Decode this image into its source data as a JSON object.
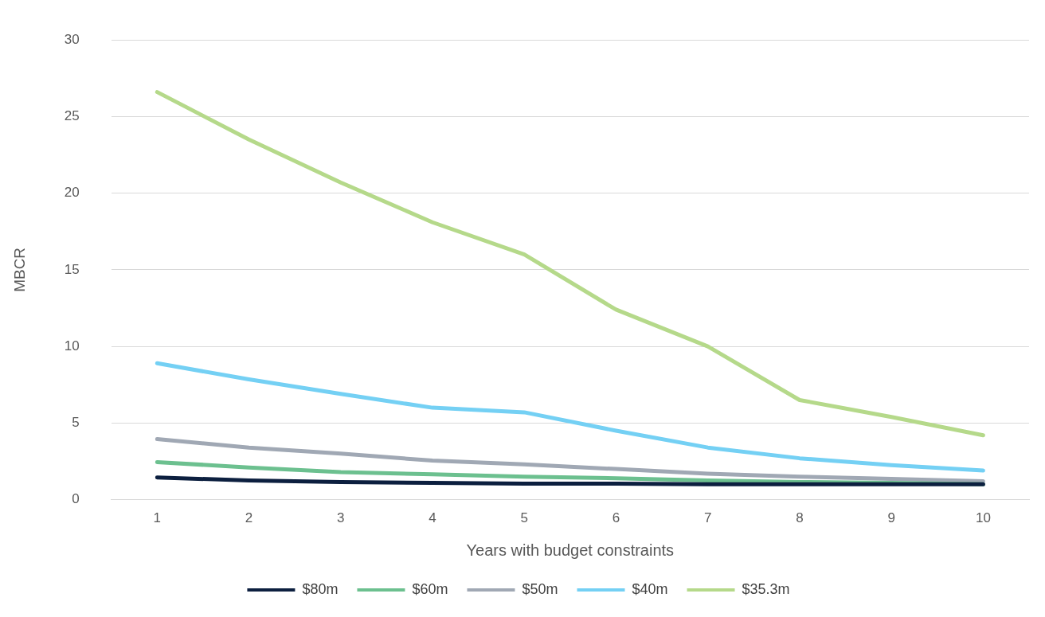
{
  "chart_data": {
    "type": "line",
    "xlabel": "Years with budget constraints",
    "ylabel": "MBCR",
    "categories": [
      "1",
      "2",
      "3",
      "4",
      "5",
      "6",
      "7",
      "8",
      "9",
      "10"
    ],
    "series": [
      {
        "name": "$80m",
        "color": "#0c1f3f",
        "values": [
          1.45,
          1.25,
          1.15,
          1.1,
          1.05,
          1.05,
          1.0,
          1.0,
          1.0,
          1.0
        ]
      },
      {
        "name": "$60m",
        "color": "#6cc08f",
        "values": [
          2.45,
          2.1,
          1.8,
          1.65,
          1.5,
          1.4,
          1.25,
          1.15,
          1.1,
          1.0
        ]
      },
      {
        "name": "$50m",
        "color": "#a0a8b4",
        "values": [
          3.95,
          3.4,
          3.0,
          2.55,
          2.3,
          2.0,
          1.7,
          1.5,
          1.35,
          1.2
        ]
      },
      {
        "name": "$40m",
        "color": "#74d0f4",
        "values": [
          8.9,
          7.85,
          6.9,
          6.0,
          5.7,
          4.5,
          3.4,
          2.7,
          2.25,
          1.9
        ]
      },
      {
        "name": "$35.3m",
        "color": "#b5d98a",
        "values": [
          26.6,
          23.5,
          20.7,
          18.1,
          16.0,
          12.4,
          10.0,
          6.5,
          5.4,
          4.2
        ]
      }
    ],
    "ylim": [
      0,
      30
    ],
    "yticks": [
      0,
      5,
      10,
      15,
      20,
      25,
      30
    ],
    "grid": "y",
    "legend": "bottom",
    "marker": "none",
    "line_style": "solid"
  }
}
